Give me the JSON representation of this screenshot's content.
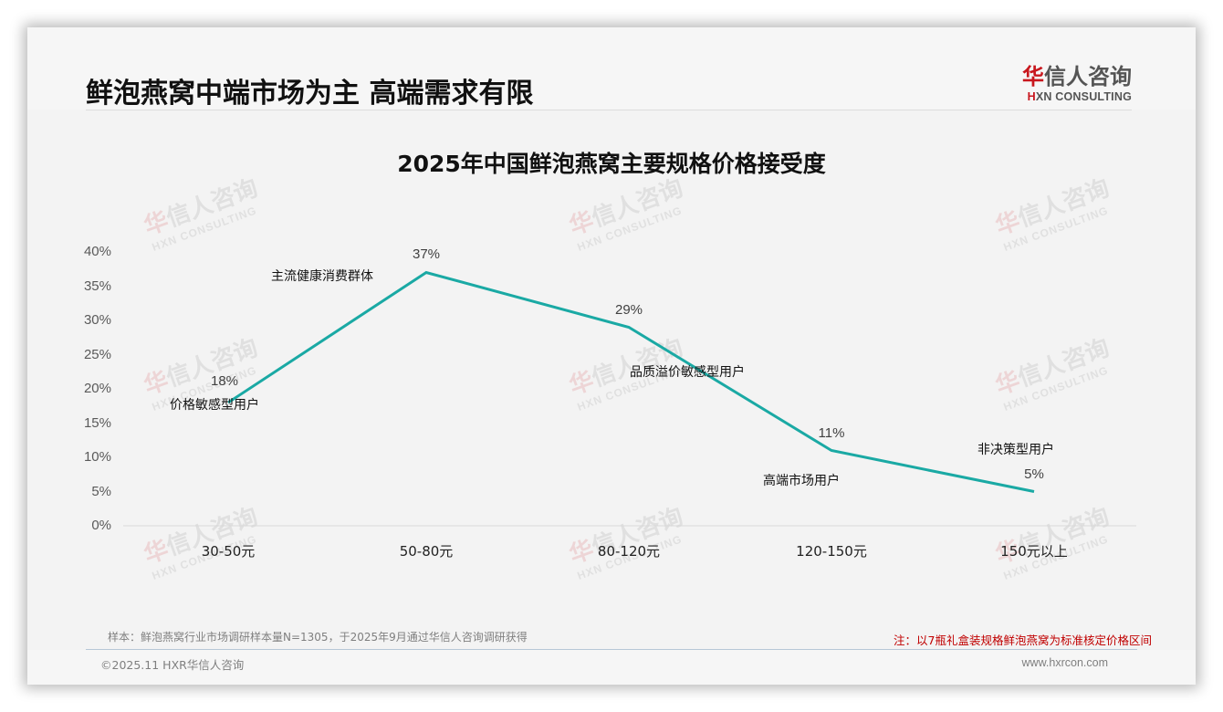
{
  "header": {
    "title": "鲜泡燕窝中端市场为主 高端需求有限",
    "logo_cn_mark": "华",
    "logo_cn_rest": "信人咨询",
    "logo_en_mark": "H",
    "logo_en_rest": "XN CONSULTING"
  },
  "watermark": {
    "cn_mark": "华",
    "cn_rest": "信人咨询",
    "en": "HXN CONSULTING"
  },
  "colors": {
    "line": "#1aa9a4",
    "brand_red": "#c8161d",
    "note_red": "#c00000",
    "axis": "#d9d9d9"
  },
  "chart_data": {
    "type": "line",
    "title": "2025年中国鲜泡燕窝主要规格价格接受度",
    "xlabel": "",
    "ylabel": "",
    "categories": [
      "30-50元",
      "50-80元",
      "80-120元",
      "120-150元",
      "150元以上"
    ],
    "series": [
      {
        "name": "价格接受度",
        "values": [
          18,
          37,
          29,
          11,
          5
        ]
      }
    ],
    "data_labels": [
      "18%",
      "37%",
      "29%",
      "11%",
      "5%"
    ],
    "annotations": [
      "价格敏感型用户",
      "主流健康消费群体",
      "品质溢价敏感型用户",
      "高端市场用户",
      "非决策型用户"
    ],
    "yticks": [
      "0%",
      "5%",
      "10%",
      "15%",
      "20%",
      "25%",
      "30%",
      "35%",
      "40%"
    ],
    "ylim": [
      0,
      40
    ],
    "grid": false,
    "legend": "none"
  },
  "footer": {
    "sample": "样本：鲜泡燕窝行业市场调研样本量N=1305，于2025年9月通过华信人咨询调研获得",
    "note": "注：以7瓶礼盒装规格鲜泡燕窝为标准核定价格区间",
    "copyright": "©2025.11 HXR华信人咨询",
    "website": "www.hxrcon.com"
  }
}
